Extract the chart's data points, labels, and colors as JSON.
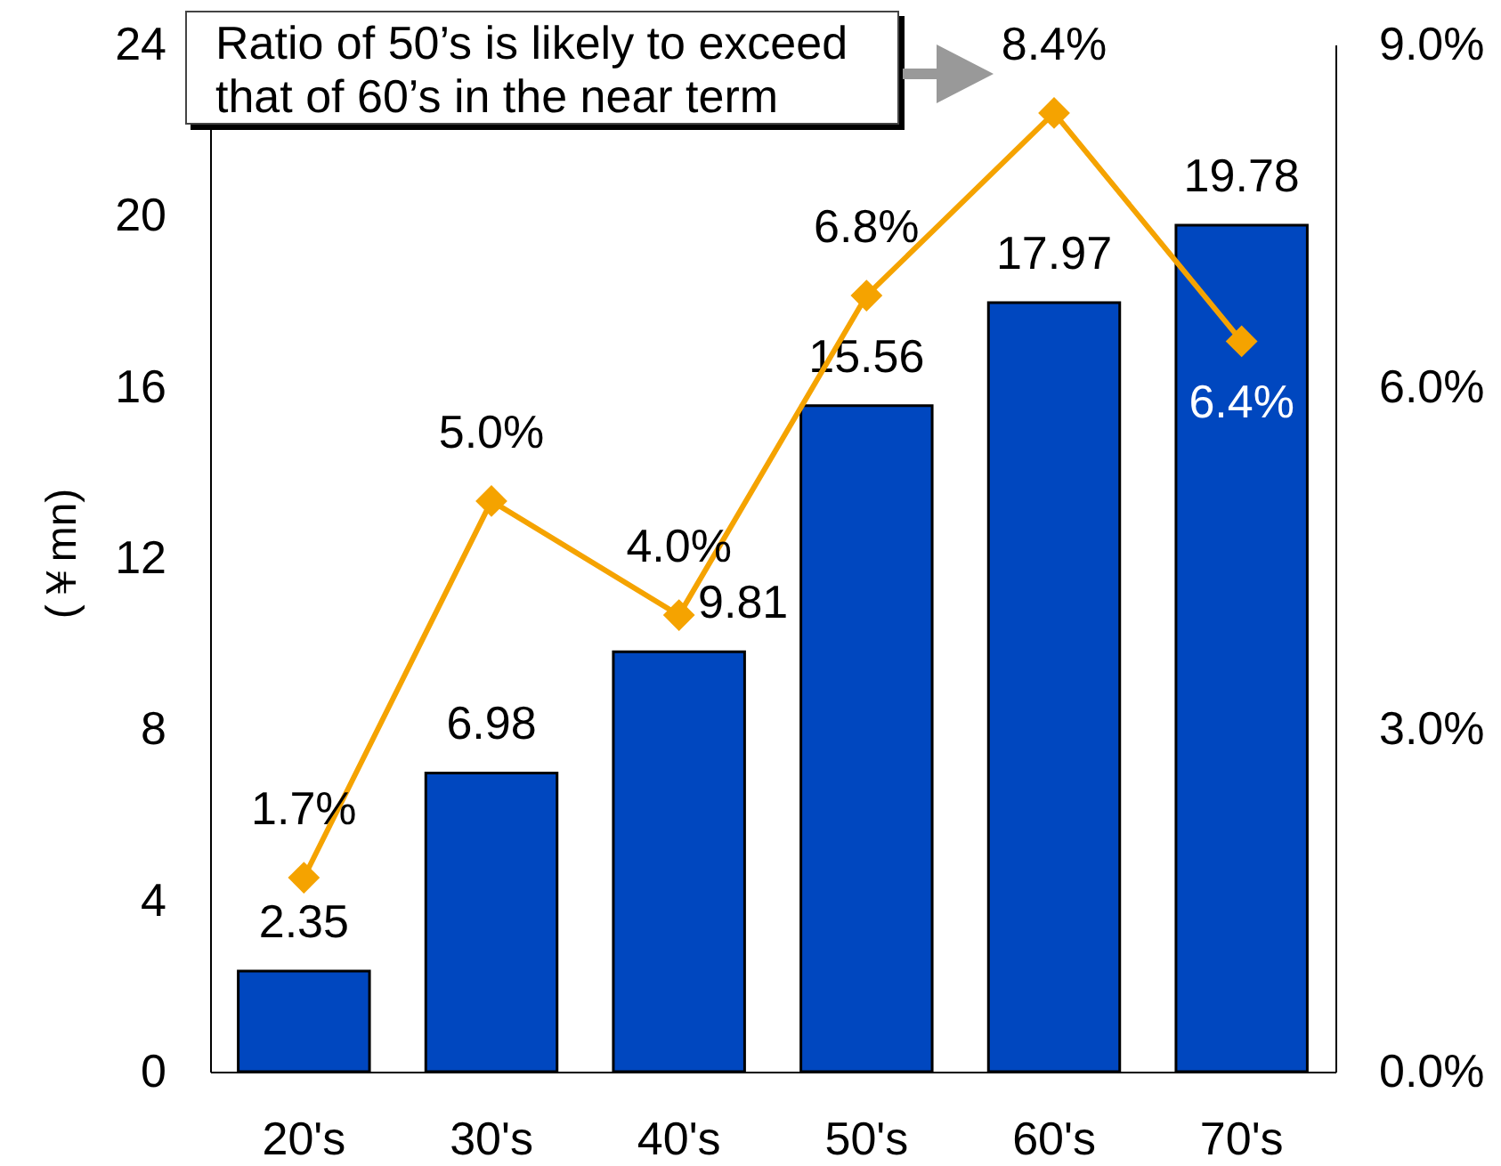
{
  "chart_data": {
    "type": "bar",
    "ylabel": "(￥mn)",
    "categories": [
      "20's",
      "30's",
      "40's",
      "50's",
      "60's",
      "70's"
    ],
    "series": [
      {
        "color": "#0047bf",
        "values": [
          2.35,
          6.98,
          9.81,
          15.56,
          17.97,
          19.78
        ],
        "value_labels": [
          "2.35",
          "6.98",
          "9.81",
          "15.56",
          "17.97",
          "19.78"
        ]
      },
      {
        "type": "line",
        "axis": "y2",
        "color": "#f5a300",
        "values": [
          1.7,
          5.0,
          4.0,
          6.8,
          8.4,
          6.4
        ],
        "value_labels": [
          "1.7%",
          "5.0%",
          "4.0%",
          "6.8%",
          "8.4%",
          "6.4%"
        ]
      }
    ],
    "ylim": [
      0,
      24
    ],
    "yticks": [
      0,
      4,
      8,
      12,
      16,
      20,
      24
    ],
    "y2lim": [
      0,
      9
    ],
    "y2ticks": [
      {
        "value": 0,
        "label": "0.0%"
      },
      {
        "value": 3,
        "label": "3.0%"
      },
      {
        "value": 6,
        "label": "6.0%"
      },
      {
        "value": 9,
        "label": "9.0%"
      }
    ],
    "marker": "diamond",
    "annotations": [
      "Ratio of 50’s is likely to exceed that of 60’s in the near term"
    ]
  }
}
